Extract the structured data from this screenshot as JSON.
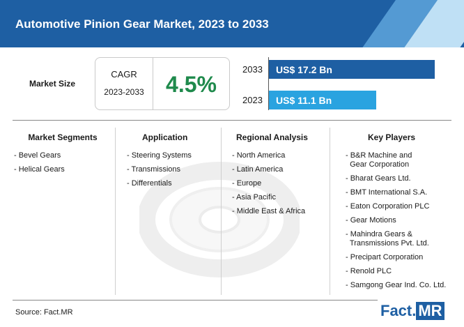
{
  "title": "Automotive Pinion Gear Market, 2023 to 2033",
  "market_size_label": "Market Size",
  "cagr": {
    "label1": "CAGR",
    "label2": "2023-2033",
    "value": "4.5%"
  },
  "colors": {
    "header": "#1e5fa3",
    "bar_2033": "#1e5fa3",
    "bar_2023": "#2aa3e0",
    "cagr": "#1f8a4c"
  },
  "chart_data": {
    "type": "bar",
    "orientation": "horizontal",
    "categories": [
      "2033",
      "2023"
    ],
    "values": [
      17.2,
      11.1
    ],
    "labels": [
      "US$ 17.2 Bn",
      "US$ 11.1 Bn"
    ],
    "unit": "US$ Bn"
  },
  "columns": [
    {
      "heading": "Market Segments",
      "items": [
        "- Bevel Gears",
        "- Helical Gears"
      ]
    },
    {
      "heading": "Application",
      "items": [
        "- Steering Systems",
        "- Transmissions",
        "- Differentials"
      ]
    },
    {
      "heading": "Regional Analysis",
      "items": [
        "- North America",
        "- Latin America",
        "- Europe",
        "- Asia Pacific",
        "- Middle East & Africa"
      ]
    },
    {
      "heading": "Key Players",
      "items": [
        [
          "- B&R Machine and",
          "  Gear Corporation"
        ],
        [
          "- Bharat Gears Ltd."
        ],
        [
          "- BMT International S.A."
        ],
        [
          "- Eaton Corporation PLC"
        ],
        [
          "- Gear Motions"
        ],
        [
          "- Mahindra Gears &",
          "  Transmissions Pvt. Ltd."
        ],
        [
          "- Precipart Corporation"
        ],
        [
          "- Renold PLC"
        ],
        [
          "- Samgong Gear Ind. Co. Ltd."
        ]
      ]
    }
  ],
  "source": "Source: Fact.MR",
  "logo": {
    "left": "Fact.",
    "right": "MR"
  }
}
